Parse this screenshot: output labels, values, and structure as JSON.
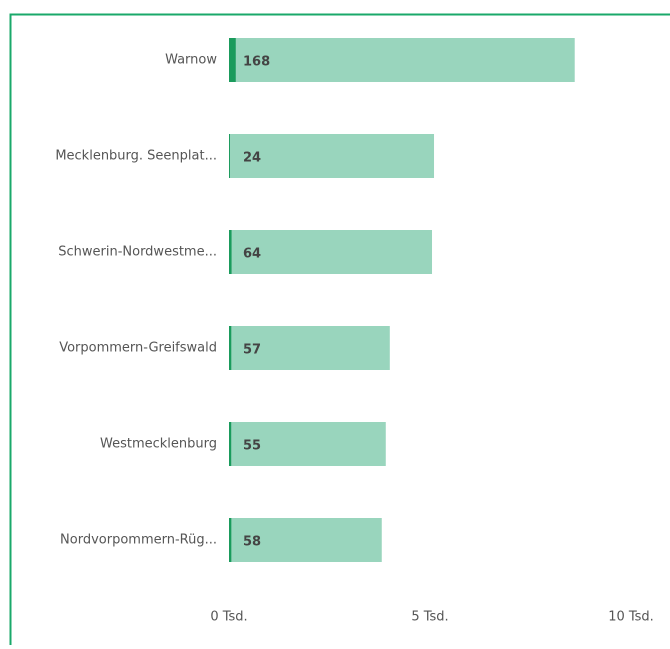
{
  "chart_data": {
    "type": "bar",
    "orientation": "horizontal",
    "categories": [
      "Warnow",
      "Mecklenburg. Seenplat...",
      "Schwerin-Nordwestme...",
      "Vorpommern-Greifswald",
      "Westmecklenburg",
      "Nordvorpommern-Rüg..."
    ],
    "series": [
      {
        "color": "#99d5bd",
        "values": [
          8600,
          5100,
          5050,
          4000,
          3900,
          3800
        ]
      },
      {
        "color": "#1a9b5c",
        "values": [
          168,
          24,
          64,
          57,
          55,
          58
        ]
      }
    ],
    "xlim": [
      0,
      10000
    ],
    "xticks": [
      {
        "value": 0,
        "label": "0 Tsd."
      },
      {
        "value": 5000,
        "label": "5 Tsd."
      },
      {
        "value": 10000,
        "label": "10 Tsd."
      }
    ],
    "grid": false
  }
}
